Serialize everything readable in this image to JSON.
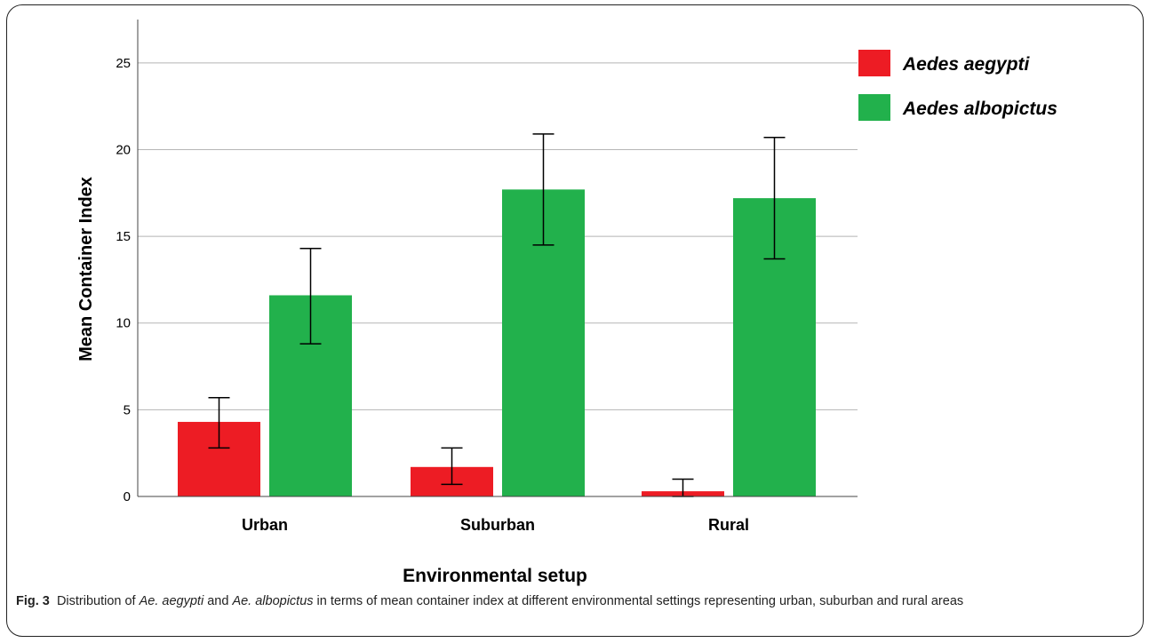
{
  "chart_data": {
    "type": "bar",
    "categories": [
      "Urban",
      "Suburban",
      "Rural"
    ],
    "series": [
      {
        "name": "Aedes aegypti",
        "color": "#ED1C24",
        "values": [
          4.3,
          1.7,
          0.3
        ],
        "error_low": [
          2.8,
          0.7,
          0.0
        ],
        "error_high": [
          5.7,
          2.8,
          1.0
        ]
      },
      {
        "name": "Aedes albopictus",
        "color": "#22B14C",
        "values": [
          11.6,
          17.7,
          17.2
        ],
        "error_low": [
          8.8,
          14.5,
          13.7
        ],
        "error_high": [
          14.3,
          20.9,
          20.7
        ]
      }
    ],
    "xlabel": "Environmental setup",
    "ylabel": "Mean Container Index",
    "ylim": [
      0,
      27.5
    ],
    "yticks": [
      0,
      5,
      10,
      15,
      20,
      25
    ],
    "grid": true,
    "legend_position": "top-right"
  },
  "caption": {
    "label": "Fig. 3",
    "text_1": "Distribution of ",
    "species_1": "Ae. aegypti",
    "text_2": " and ",
    "species_2": "Ae. albopictus",
    "text_3": " in terms of mean container index at different environmental settings representing urban, suburban and rural areas"
  }
}
